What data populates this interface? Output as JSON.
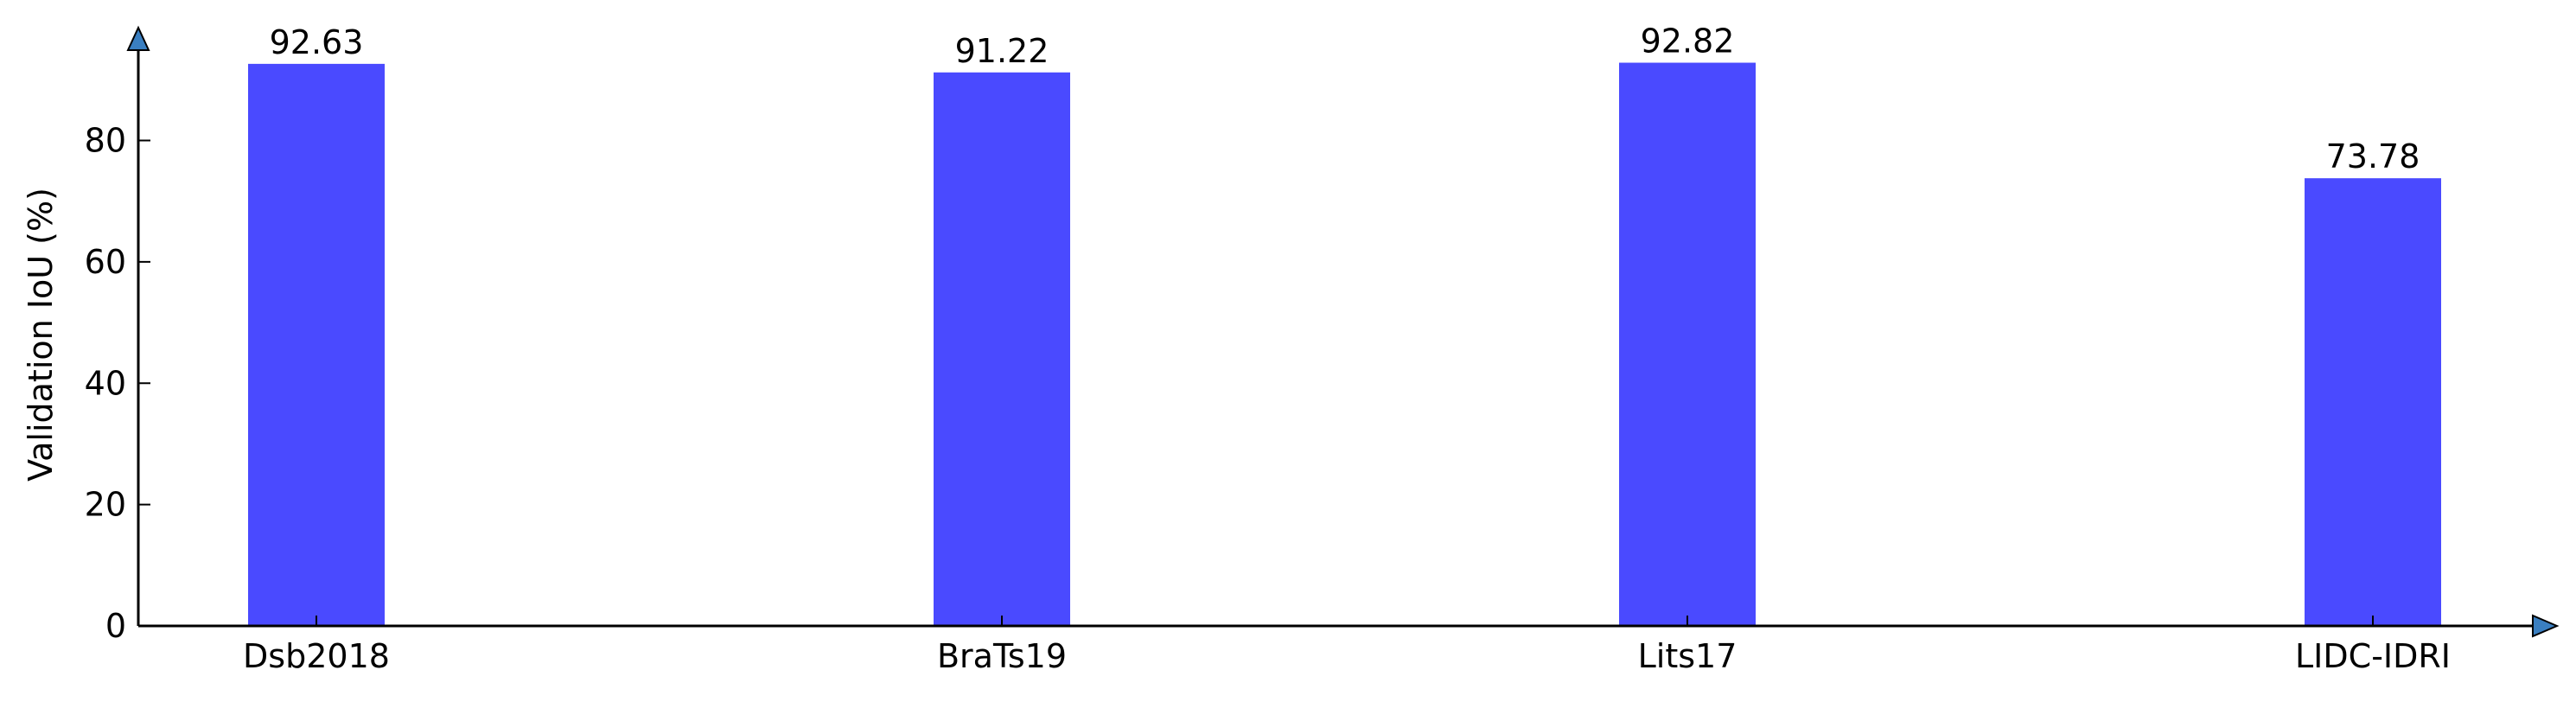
{
  "chart_data": {
    "type": "bar",
    "categories": [
      "Dsb2018",
      "BraTs19",
      "Lits17",
      "LIDC-IDRI"
    ],
    "values": [
      92.63,
      91.22,
      92.82,
      73.78
    ],
    "value_labels": [
      "92.63",
      "91.22",
      "92.82",
      "73.78"
    ],
    "ylabel": "Validation IoU (%)",
    "xlabel": "",
    "ylim": [
      0,
      96.6
    ],
    "yticks": [
      0,
      20,
      40,
      60,
      80
    ],
    "ytick_labels": [
      "0",
      "20",
      "40",
      "60",
      "80"
    ],
    "grid": false,
    "legend": "none",
    "axis_arrows": true,
    "colors": {
      "bar": "#4a4aff",
      "axis": "#000000",
      "arrow_fill": "#3a7fc1"
    }
  }
}
